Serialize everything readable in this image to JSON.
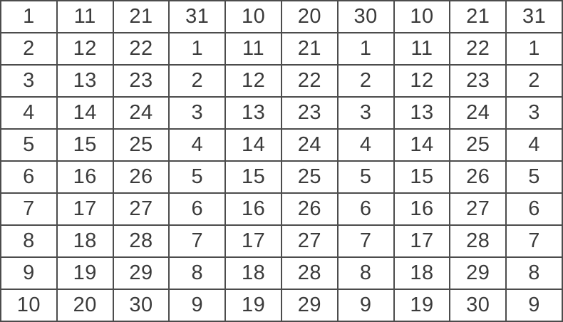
{
  "chart_data": {
    "type": "table",
    "title": "",
    "columns": 10,
    "rows": [
      [
        "1",
        "11",
        "21",
        "31",
        "10",
        "20",
        "30",
        "10",
        "21",
        "31"
      ],
      [
        "2",
        "12",
        "22",
        "1",
        "11",
        "21",
        "1",
        "11",
        "22",
        "1"
      ],
      [
        "3",
        "13",
        "23",
        "2",
        "12",
        "22",
        "2",
        "12",
        "23",
        "2"
      ],
      [
        "4",
        "14",
        "24",
        "3",
        "13",
        "23",
        "3",
        "13",
        "24",
        "3"
      ],
      [
        "5",
        "15",
        "25",
        "4",
        "14",
        "24",
        "4",
        "14",
        "25",
        "4"
      ],
      [
        "6",
        "16",
        "26",
        "5",
        "15",
        "25",
        "5",
        "15",
        "26",
        "5"
      ],
      [
        "7",
        "17",
        "27",
        "6",
        "16",
        "26",
        "6",
        "16",
        "27",
        "6"
      ],
      [
        "8",
        "18",
        "28",
        "7",
        "17",
        "27",
        "7",
        "17",
        "28",
        "7"
      ],
      [
        "9",
        "19",
        "29",
        "8",
        "18",
        "28",
        "8",
        "18",
        "29",
        "8"
      ],
      [
        "10",
        "20",
        "30",
        "9",
        "19",
        "29",
        "9",
        "19",
        "30",
        "9"
      ]
    ],
    "layout": {
      "grid": true,
      "grid_color": "#4c4c4c",
      "text_color": "#3b3b3b",
      "background_color": "#ffffff"
    }
  }
}
